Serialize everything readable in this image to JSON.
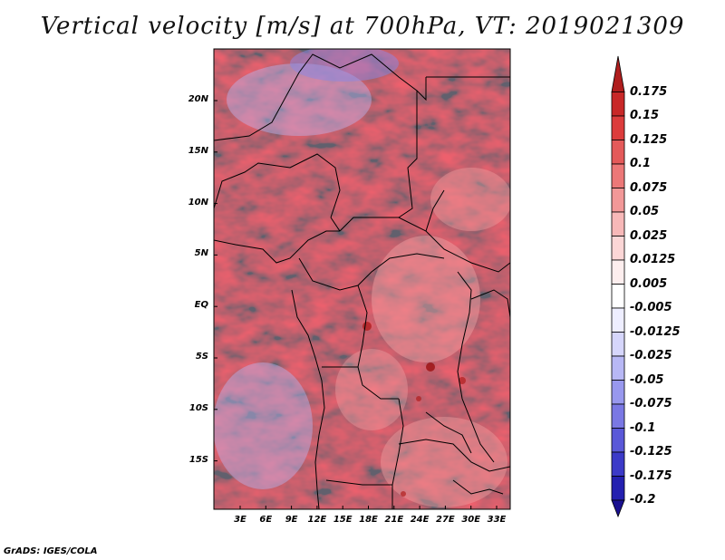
{
  "title": "Vertical velocity [m/s] at 700hPa, VT: 2019021309",
  "credit": "GrADS: IGES/COLA",
  "y_axis": [
    "20N",
    "15N",
    "10N",
    "5N",
    "EQ",
    "5S",
    "10S",
    "15S"
  ],
  "x_axis": [
    "3E",
    "6E",
    "9E",
    "12E",
    "15E",
    "18E",
    "21E",
    "24E",
    "27E",
    "30E",
    "33E"
  ],
  "colorbar": {
    "labels": [
      "0.175",
      "0.15",
      "0.125",
      "0.1",
      "0.075",
      "0.05",
      "0.025",
      "0.0125",
      "0.005",
      "-0.005",
      "-0.0125",
      "-0.025",
      "-0.05",
      "-0.075",
      "-0.1",
      "-0.125",
      "-0.175",
      "-0.2"
    ],
    "colors_top_to_bottom": [
      "#b01e1e",
      "#c82828",
      "#dc3c3c",
      "#e45a5a",
      "#ec7878",
      "#f29898",
      "#f7b8b8",
      "#fbd6d6",
      "#fdeeee",
      "#ffffff",
      "#eeeeff",
      "#d6d6fb",
      "#b8b8f5",
      "#9898ee",
      "#7a78e4",
      "#5a58d8",
      "#3c3ac8",
      "#2420b0",
      "#1a1090"
    ]
  }
}
